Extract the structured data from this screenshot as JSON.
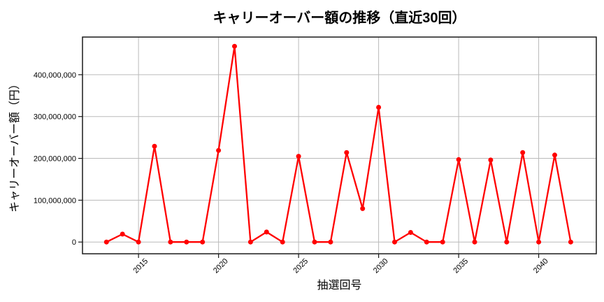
{
  "chart_data": {
    "type": "line",
    "title": "キャリーオーバー額の推移（直近30回）",
    "xlabel": "抽選回号",
    "ylabel": "キャリーオーバー額（円）",
    "series_name": "キャリーオーバー額",
    "x": [
      2013,
      2014,
      2015,
      2016,
      2017,
      2018,
      2019,
      2020,
      2021,
      2022,
      2023,
      2024,
      2025,
      2026,
      2027,
      2028,
      2029,
      2030,
      2031,
      2032,
      2033,
      2034,
      2035,
      2036,
      2037,
      2038,
      2039,
      2040,
      2041,
      2042
    ],
    "values": [
      0,
      19000000,
      0,
      229000000,
      0,
      0,
      0,
      219000000,
      468000000,
      0,
      24000000,
      0,
      205000000,
      0,
      0,
      214000000,
      80000000,
      322000000,
      0,
      23000000,
      0,
      0,
      197000000,
      0,
      196000000,
      0,
      214000000,
      0,
      208000000,
      0
    ],
    "xlim": [
      2011.5,
      2043.6
    ],
    "ylim": [
      -28000000,
      490000000
    ],
    "x_ticks": [
      2015,
      2020,
      2025,
      2030,
      2035,
      2040
    ],
    "x_tick_labels": [
      "2015",
      "2020",
      "2025",
      "2030",
      "2035",
      "2040"
    ],
    "y_ticks": [
      0,
      100000000,
      200000000,
      300000000,
      400000000
    ],
    "y_tick_labels": [
      "0",
      "100,000,000",
      "200,000,000",
      "300,000,000",
      "400,000,000"
    ],
    "grid": true,
    "legend_position": "none",
    "marker": "circle",
    "colors": {
      "line": "#ff0000",
      "marker": "#ff0000",
      "grid": "#bababa",
      "axis": "#1a1a1a",
      "text": "#000000",
      "background": "#ffffff"
    }
  }
}
